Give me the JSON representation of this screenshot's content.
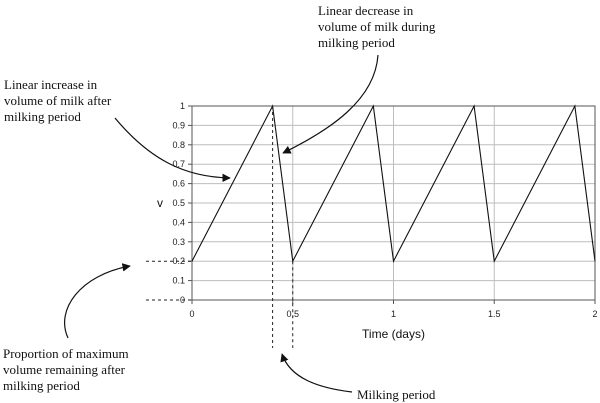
{
  "chart_data": {
    "type": "line",
    "title": "",
    "xlabel": "Time (days)",
    "ylabel": "v",
    "xlim": [
      0,
      2
    ],
    "ylim": [
      0,
      1
    ],
    "x_ticks": [
      "0",
      "0.5",
      "1",
      "1.5",
      "2"
    ],
    "y_ticks": [
      "0",
      "0.1",
      "0.2",
      "0.3",
      "0.4",
      "0.5",
      "0.6",
      "0.7",
      "0.8",
      "0.9",
      "1"
    ],
    "grid": true,
    "series": [
      {
        "x": [
          0,
          0.4,
          0.5,
          0.9,
          1.0,
          1.4,
          1.5,
          1.9,
          2.0
        ],
        "y": [
          0.2,
          1.0,
          0.2,
          1.0,
          0.2,
          1.0,
          0.2,
          1.0,
          0.2
        ]
      }
    ],
    "reference_values": {
      "milking_period": [
        0.4,
        0.5
      ],
      "remaining_level": 0.2,
      "zero_level": 0
    },
    "annotations": [
      "Linear decrease in\nvolume of milk during\nmilking period",
      "Linear increase in\nvolume of milk after\nmilking period",
      "Proportion of maximum\nvolume remaining after\nmilking period",
      "Milking period"
    ]
  },
  "colors": {
    "line": "#111111",
    "grid": "#bdbdbd",
    "frame": "#555555"
  }
}
